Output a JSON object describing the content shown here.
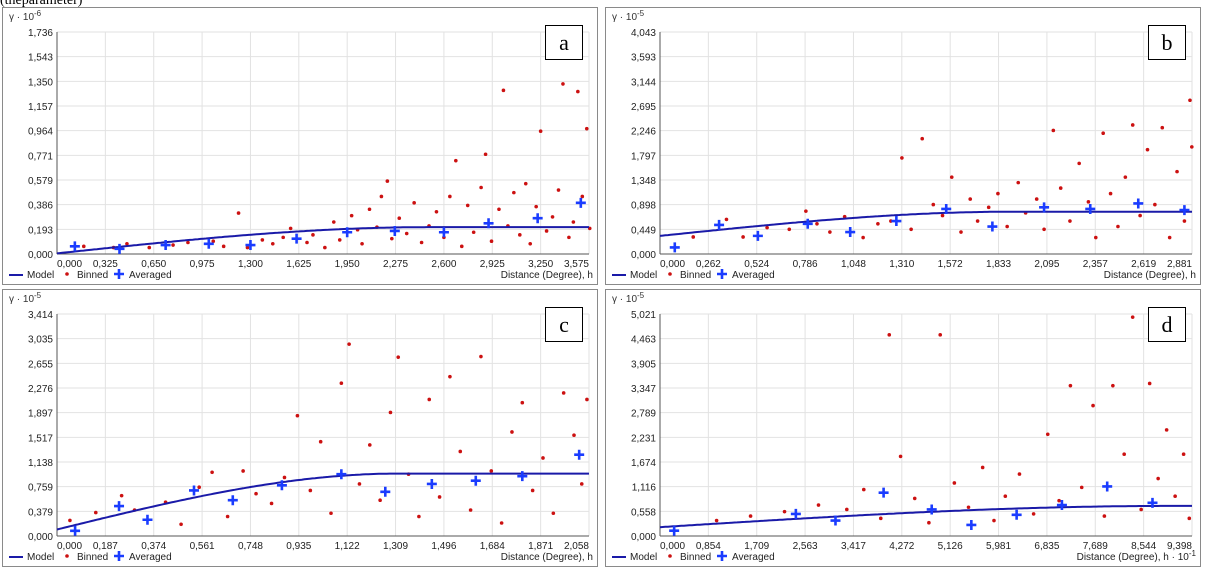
{
  "top_caption": "(theparameter)",
  "colors": {
    "model": "#1a1aa8",
    "binned": "#cc1111",
    "averaged": "#1a3cff",
    "grid": "#e2e2e2",
    "axis": "#555555"
  },
  "legend": {
    "model": "Model",
    "binned": "Binned",
    "averaged": "Averaged"
  },
  "chart_data": [
    {
      "type": "scatter",
      "panel_label": "a",
      "ylabel_base": "γ · 10",
      "ylabel_exp": "-6",
      "xlabel_base": "Distance (Degree), h",
      "xlabel_exp": "",
      "y_ticks": [
        "0,000",
        "0,193",
        "0,386",
        "0,579",
        "0,771",
        "0,964",
        "1,157",
        "1,350",
        "1,543",
        "1,736"
      ],
      "x_ticks": [
        "0,000",
        "0,325",
        "0,650",
        "0,975",
        "1,300",
        "1,625",
        "1,950",
        "2,275",
        "2,600",
        "2,925",
        "3,250",
        "3,575"
      ],
      "xlim": [
        0,
        3.575
      ],
      "ylim": [
        0,
        1.736
      ],
      "model": {
        "nugget": 0.005,
        "sill": 0.21,
        "range": 2.5,
        "shape": "spherical"
      },
      "averaged": [
        [
          0.12,
          0.06
        ],
        [
          0.42,
          0.04
        ],
        [
          0.73,
          0.07
        ],
        [
          1.02,
          0.08
        ],
        [
          1.3,
          0.07
        ],
        [
          1.61,
          0.12
        ],
        [
          1.95,
          0.17
        ],
        [
          2.27,
          0.18
        ],
        [
          2.6,
          0.17
        ],
        [
          2.9,
          0.24
        ],
        [
          3.23,
          0.28
        ],
        [
          3.52,
          0.4
        ]
      ],
      "binned": [
        [
          0.18,
          0.06
        ],
        [
          0.38,
          0.05
        ],
        [
          0.47,
          0.08
        ],
        [
          0.62,
          0.05
        ],
        [
          0.78,
          0.07
        ],
        [
          0.88,
          0.09
        ],
        [
          1.05,
          0.1
        ],
        [
          1.12,
          0.06
        ],
        [
          1.22,
          0.32
        ],
        [
          1.28,
          0.05
        ],
        [
          1.38,
          0.11
        ],
        [
          1.45,
          0.08
        ],
        [
          1.52,
          0.13
        ],
        [
          1.57,
          0.2
        ],
        [
          1.68,
          0.09
        ],
        [
          1.72,
          0.15
        ],
        [
          1.8,
          0.05
        ],
        [
          1.86,
          0.25
        ],
        [
          1.9,
          0.11
        ],
        [
          1.98,
          0.3
        ],
        [
          2.02,
          0.19
        ],
        [
          2.05,
          0.08
        ],
        [
          2.1,
          0.35
        ],
        [
          2.15,
          0.21
        ],
        [
          2.18,
          0.45
        ],
        [
          2.22,
          0.57
        ],
        [
          2.25,
          0.12
        ],
        [
          2.3,
          0.28
        ],
        [
          2.35,
          0.16
        ],
        [
          2.4,
          0.4
        ],
        [
          2.45,
          0.09
        ],
        [
          2.5,
          0.22
        ],
        [
          2.55,
          0.33
        ],
        [
          2.6,
          0.13
        ],
        [
          2.64,
          0.45
        ],
        [
          2.68,
          0.73
        ],
        [
          2.72,
          0.06
        ],
        [
          2.76,
          0.38
        ],
        [
          2.8,
          0.17
        ],
        [
          2.85,
          0.52
        ],
        [
          2.88,
          0.78
        ],
        [
          2.92,
          0.1
        ],
        [
          2.97,
          0.35
        ],
        [
          3.0,
          1.28
        ],
        [
          3.03,
          0.22
        ],
        [
          3.07,
          0.48
        ],
        [
          3.11,
          0.15
        ],
        [
          3.15,
          0.55
        ],
        [
          3.18,
          0.08
        ],
        [
          3.22,
          0.37
        ],
        [
          3.25,
          0.96
        ],
        [
          3.29,
          0.18
        ],
        [
          3.33,
          0.29
        ],
        [
          3.37,
          0.5
        ],
        [
          3.4,
          1.33
        ],
        [
          3.44,
          0.13
        ],
        [
          3.47,
          0.25
        ],
        [
          3.5,
          1.27
        ],
        [
          3.53,
          0.45
        ],
        [
          3.56,
          0.98
        ],
        [
          3.58,
          0.2
        ]
      ]
    },
    {
      "type": "scatter",
      "panel_label": "b",
      "ylabel_base": "γ · 10",
      "ylabel_exp": "-5",
      "xlabel_base": "Distance (Degree), h",
      "xlabel_exp": "",
      "y_ticks": [
        "0,000",
        "0,449",
        "0,898",
        "1,348",
        "1,797",
        "2,246",
        "2,695",
        "3,144",
        "3,593",
        "4,043"
      ],
      "x_ticks": [
        "0,000",
        "0,262",
        "0,524",
        "0,786",
        "1,048",
        "1,310",
        "1,572",
        "1,833",
        "2,095",
        "2,357",
        "2,619",
        "2,881"
      ],
      "xlim": [
        0,
        2.881
      ],
      "ylim": [
        0,
        4.043
      ],
      "model": {
        "nugget": 0.33,
        "sill": 0.77,
        "range": 1.9,
        "shape": "spherical"
      },
      "averaged": [
        [
          0.08,
          0.12
        ],
        [
          0.32,
          0.53
        ],
        [
          0.53,
          0.33
        ],
        [
          0.8,
          0.55
        ],
        [
          1.03,
          0.4
        ],
        [
          1.28,
          0.6
        ],
        [
          1.55,
          0.82
        ],
        [
          1.8,
          0.5
        ],
        [
          2.08,
          0.85
        ],
        [
          2.33,
          0.82
        ],
        [
          2.59,
          0.92
        ],
        [
          2.84,
          0.8
        ]
      ],
      "binned": [
        [
          0.18,
          0.31
        ],
        [
          0.36,
          0.63
        ],
        [
          0.45,
          0.31
        ],
        [
          0.58,
          0.48
        ],
        [
          0.7,
          0.45
        ],
        [
          0.79,
          0.78
        ],
        [
          0.85,
          0.55
        ],
        [
          0.92,
          0.4
        ],
        [
          1.0,
          0.68
        ],
        [
          1.1,
          0.3
        ],
        [
          1.18,
          0.55
        ],
        [
          1.25,
          0.6
        ],
        [
          1.31,
          1.75
        ],
        [
          1.36,
          0.45
        ],
        [
          1.42,
          2.1
        ],
        [
          1.48,
          0.9
        ],
        [
          1.53,
          0.7
        ],
        [
          1.58,
          1.4
        ],
        [
          1.63,
          0.4
        ],
        [
          1.68,
          1.0
        ],
        [
          1.72,
          0.6
        ],
        [
          1.78,
          0.85
        ],
        [
          1.83,
          1.1
        ],
        [
          1.88,
          0.5
        ],
        [
          1.94,
          1.3
        ],
        [
          1.98,
          0.75
        ],
        [
          2.04,
          1.0
        ],
        [
          2.08,
          0.45
        ],
        [
          2.13,
          2.25
        ],
        [
          2.17,
          1.2
        ],
        [
          2.22,
          0.6
        ],
        [
          2.27,
          1.65
        ],
        [
          2.32,
          0.95
        ],
        [
          2.36,
          0.3
        ],
        [
          2.4,
          2.2
        ],
        [
          2.44,
          1.1
        ],
        [
          2.48,
          0.5
        ],
        [
          2.52,
          1.4
        ],
        [
          2.56,
          2.35
        ],
        [
          2.6,
          0.7
        ],
        [
          2.64,
          1.9
        ],
        [
          2.68,
          0.9
        ],
        [
          2.72,
          2.3
        ],
        [
          2.76,
          0.3
        ],
        [
          2.8,
          1.5
        ],
        [
          2.84,
          0.6
        ],
        [
          2.87,
          2.8
        ],
        [
          2.88,
          1.95
        ]
      ]
    },
    {
      "type": "scatter",
      "panel_label": "c",
      "ylabel_base": "γ · 10",
      "ylabel_exp": "-5",
      "xlabel_base": "Distance (Degree), h",
      "xlabel_exp": "",
      "y_ticks": [
        "0,000",
        "0,379",
        "0,759",
        "1,138",
        "1,517",
        "1,897",
        "2,276",
        "2,655",
        "3,035",
        "3,414"
      ],
      "x_ticks": [
        "0,000",
        "0,187",
        "0,374",
        "0,561",
        "0,748",
        "0,935",
        "1,122",
        "1,309",
        "1,496",
        "1,684",
        "1,871",
        "2,058"
      ],
      "xlim": [
        0,
        2.058
      ],
      "ylim": [
        0,
        3.414
      ],
      "model": {
        "nugget": 0.1,
        "sill": 0.96,
        "range": 1.32,
        "shape": "spherical"
      },
      "averaged": [
        [
          0.07,
          0.08
        ],
        [
          0.24,
          0.46
        ],
        [
          0.35,
          0.25
        ],
        [
          0.53,
          0.7
        ],
        [
          0.68,
          0.55
        ],
        [
          0.87,
          0.78
        ],
        [
          1.1,
          0.95
        ],
        [
          1.27,
          0.68
        ],
        [
          1.45,
          0.8
        ],
        [
          1.62,
          0.85
        ],
        [
          1.8,
          0.92
        ],
        [
          2.02,
          1.25
        ]
      ],
      "binned": [
        [
          0.05,
          0.24
        ],
        [
          0.15,
          0.36
        ],
        [
          0.25,
          0.62
        ],
        [
          0.3,
          0.4
        ],
        [
          0.42,
          0.52
        ],
        [
          0.48,
          0.18
        ],
        [
          0.55,
          0.75
        ],
        [
          0.6,
          0.98
        ],
        [
          0.66,
          0.3
        ],
        [
          0.72,
          1.0
        ],
        [
          0.77,
          0.65
        ],
        [
          0.83,
          0.5
        ],
        [
          0.88,
          0.9
        ],
        [
          0.93,
          1.85
        ],
        [
          0.98,
          0.7
        ],
        [
          1.02,
          1.45
        ],
        [
          1.06,
          0.35
        ],
        [
          1.1,
          2.35
        ],
        [
          1.13,
          2.95
        ],
        [
          1.17,
          0.8
        ],
        [
          1.21,
          1.4
        ],
        [
          1.25,
          0.55
        ],
        [
          1.29,
          1.9
        ],
        [
          1.32,
          2.75
        ],
        [
          1.36,
          0.95
        ],
        [
          1.4,
          0.3
        ],
        [
          1.44,
          2.1
        ],
        [
          1.48,
          0.6
        ],
        [
          1.52,
          2.45
        ],
        [
          1.56,
          1.3
        ],
        [
          1.6,
          0.4
        ],
        [
          1.64,
          2.76
        ],
        [
          1.68,
          1.0
        ],
        [
          1.72,
          0.2
        ],
        [
          1.76,
          1.6
        ],
        [
          1.8,
          2.05
        ],
        [
          1.84,
          0.7
        ],
        [
          1.88,
          1.2
        ],
        [
          1.92,
          0.35
        ],
        [
          1.96,
          2.2
        ],
        [
          2.0,
          1.55
        ],
        [
          2.03,
          0.8
        ],
        [
          2.05,
          2.1
        ]
      ]
    },
    {
      "type": "scatter",
      "panel_label": "d",
      "ylabel_base": "γ · 10",
      "ylabel_exp": "-5",
      "xlabel_base": "Distance (Degree), h · 10",
      "xlabel_exp": "-1",
      "y_ticks": [
        "0,000",
        "0,558",
        "1,116",
        "1,674",
        "2,231",
        "2,789",
        "3,347",
        "3,905",
        "4,463",
        "5,021"
      ],
      "x_ticks": [
        "0,000",
        "0,854",
        "1,709",
        "2,563",
        "3,417",
        "4,272",
        "5,126",
        "5,981",
        "6,835",
        "7,689",
        "8,544",
        "9,398"
      ],
      "xlim": [
        0,
        9.398
      ],
      "ylim": [
        0,
        5.021
      ],
      "model": {
        "nugget": 0.2,
        "sill": 0.68,
        "range": 9.0,
        "shape": "spherical"
      },
      "averaged": [
        [
          0.25,
          0.12
        ],
        [
          2.4,
          0.5
        ],
        [
          3.1,
          0.35
        ],
        [
          3.95,
          0.98
        ],
        [
          4.8,
          0.6
        ],
        [
          5.5,
          0.25
        ],
        [
          6.3,
          0.48
        ],
        [
          7.1,
          0.7
        ],
        [
          7.9,
          1.12
        ],
        [
          8.7,
          0.75
        ]
      ],
      "binned": [
        [
          1.0,
          0.35
        ],
        [
          1.6,
          0.45
        ],
        [
          2.2,
          0.55
        ],
        [
          2.8,
          0.7
        ],
        [
          3.3,
          0.6
        ],
        [
          3.6,
          1.05
        ],
        [
          3.9,
          0.4
        ],
        [
          4.05,
          4.55
        ],
        [
          4.25,
          1.8
        ],
        [
          4.5,
          0.85
        ],
        [
          4.75,
          0.3
        ],
        [
          4.95,
          4.55
        ],
        [
          5.2,
          1.2
        ],
        [
          5.45,
          0.65
        ],
        [
          5.7,
          1.55
        ],
        [
          5.9,
          0.35
        ],
        [
          6.1,
          0.9
        ],
        [
          6.35,
          1.4
        ],
        [
          6.6,
          0.5
        ],
        [
          6.85,
          2.3
        ],
        [
          7.05,
          0.8
        ],
        [
          7.25,
          3.4
        ],
        [
          7.45,
          1.1
        ],
        [
          7.65,
          2.95
        ],
        [
          7.85,
          0.45
        ],
        [
          8.0,
          3.4
        ],
        [
          8.2,
          1.85
        ],
        [
          8.35,
          4.95
        ],
        [
          8.5,
          0.6
        ],
        [
          8.65,
          3.45
        ],
        [
          8.8,
          1.3
        ],
        [
          8.95,
          2.4
        ],
        [
          9.1,
          0.9
        ],
        [
          9.25,
          1.85
        ],
        [
          9.35,
          0.4
        ]
      ]
    }
  ]
}
